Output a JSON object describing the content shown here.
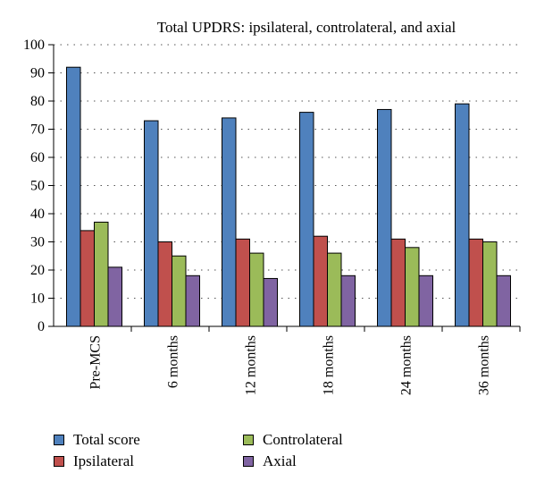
{
  "chart_data": {
    "type": "bar",
    "title": "Total UPDRS: ipsilateral, controlateral, and axial",
    "xlabel": "",
    "ylabel": "",
    "ylim": [
      0,
      100
    ],
    "yticks": [
      0,
      10,
      20,
      30,
      40,
      50,
      60,
      70,
      80,
      90,
      100
    ],
    "grid": "horizontal dotted",
    "legend_position": "bottom",
    "categories": [
      "Pre-MCS",
      "6 months",
      "12 months",
      "18 months",
      "24 months",
      "36 months"
    ],
    "series": [
      {
        "name": "Total score",
        "color": "#4f81bd",
        "values": [
          92,
          73,
          74,
          76,
          77,
          79
        ]
      },
      {
        "name": "Ipsilateral",
        "color": "#c0504d",
        "values": [
          34,
          30,
          31,
          32,
          31,
          31
        ]
      },
      {
        "name": "Controlateral",
        "color": "#9bbb59",
        "values": [
          37,
          25,
          26,
          26,
          28,
          30
        ]
      },
      {
        "name": "Axial",
        "color": "#8064a2",
        "values": [
          21,
          18,
          17,
          18,
          18,
          18
        ]
      }
    ]
  }
}
